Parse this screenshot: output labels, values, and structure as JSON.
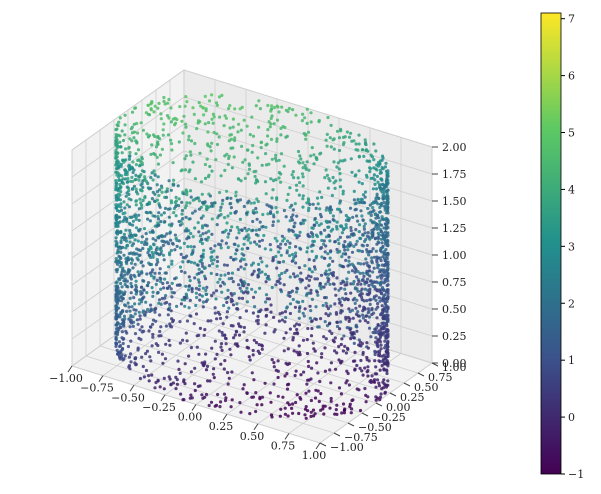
{
  "chart_data": {
    "type": "scatter",
    "projection": "3d",
    "shape": "cylinder surface",
    "cylinder": {
      "radius": 1.0,
      "z_range": [
        0,
        2
      ]
    },
    "color_mapping": "value increases with height and with -x, +y direction",
    "colormap": "viridis",
    "colormap_stops": [
      "#440154",
      "#3b528b",
      "#21908d",
      "#5dc963",
      "#fde725"
    ],
    "colorbar": {
      "range": [
        -1,
        7.1
      ],
      "ticks": [
        "−1",
        "0",
        "1",
        "2",
        "3",
        "4",
        "5",
        "6",
        "7"
      ],
      "tick_values": [
        -1,
        0,
        1,
        2,
        3,
        4,
        5,
        6,
        7
      ]
    },
    "axes": {
      "x": {
        "lim": [
          -1,
          1
        ],
        "ticks": [
          "−1.00",
          "−0.75",
          "−0.50",
          "−0.25",
          "0.00",
          "0.25",
          "0.50",
          "0.75",
          "1.00"
        ]
      },
      "y": {
        "lim": [
          -1,
          1
        ],
        "ticks": [
          "−1.00",
          "−0.75",
          "−0.50",
          "−0.25",
          "0.00",
          "0.25",
          "0.50",
          "0.75",
          "1.00"
        ]
      },
      "z": {
        "lim": [
          0,
          2
        ],
        "ticks": [
          "0.00",
          "0.25",
          "0.50",
          "0.75",
          "1.00",
          "1.25",
          "1.50",
          "1.75",
          "2.00"
        ]
      }
    },
    "grid": true,
    "title": "",
    "xlabel": "",
    "ylabel": "",
    "zlabel": ""
  }
}
